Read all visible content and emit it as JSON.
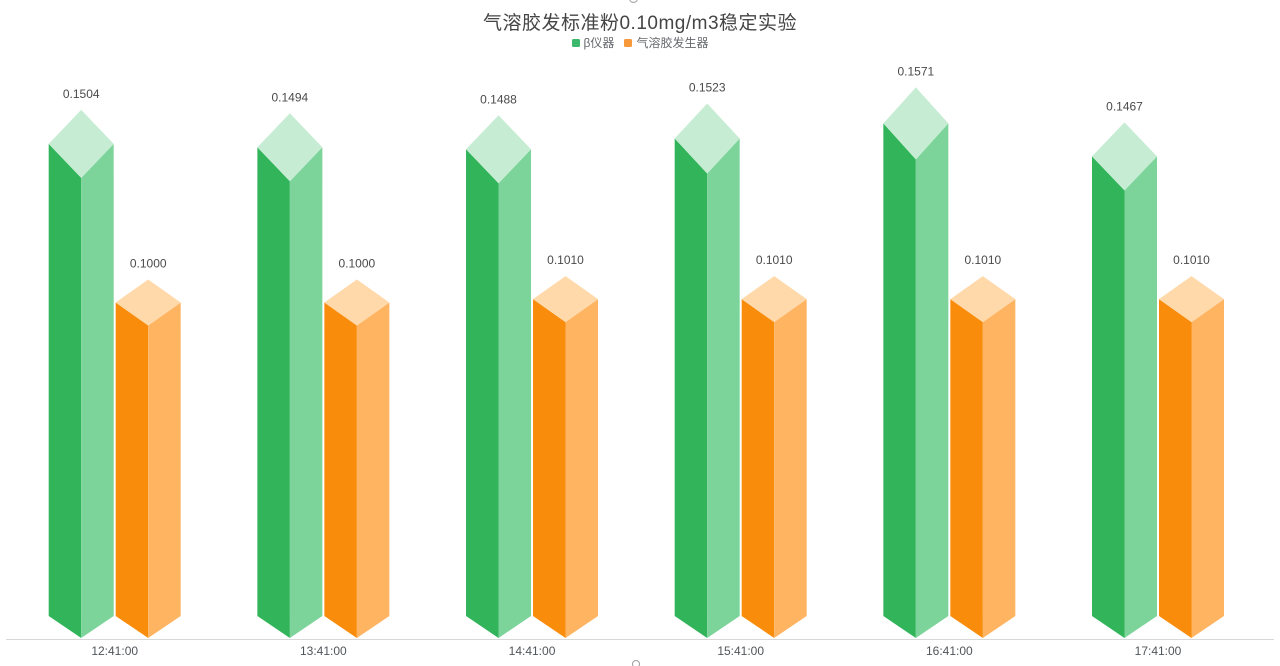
{
  "page": {
    "background": "#FFFFFF"
  },
  "chart_data": {
    "type": "bar",
    "title": "气溶胶发标准粉0.10mg/m3稳定实验",
    "categories": [
      "12:41:00",
      "13:41:00",
      "14:41:00",
      "15:41:00",
      "16:41:00",
      "17:41:00"
    ],
    "series": [
      {
        "name": "β仪器",
        "values": [
          0.1504,
          0.1494,
          0.1488,
          0.1523,
          0.1571,
          0.1467
        ],
        "labels": [
          "0.1504",
          "0.1494",
          "0.1488",
          "0.1523",
          "0.1571",
          "0.1467"
        ],
        "colors": {
          "left": "#32B45A",
          "right": "#7DD49B",
          "top": "#C6EDD3",
          "legend": "#3CB96A"
        }
      },
      {
        "name": "气溶胶发生器",
        "values": [
          0.1,
          0.1,
          0.101,
          0.101,
          0.101,
          0.101
        ],
        "labels": [
          "0.1000",
          "0.1000",
          "0.1010",
          "0.1010",
          "0.1010",
          "0.1010"
        ],
        "colors": {
          "left": "#FA8C0B",
          "right": "#FFB462",
          "top": "#FFD9AA",
          "legend": "#F8993C"
        }
      }
    ],
    "xlabel": "",
    "ylabel": "",
    "y_axis_visible": false,
    "grid": false,
    "legend_position": "top-center",
    "bar_style": "3d-prism",
    "axis_line_color": "#D8D8D8",
    "title_color": "#454545",
    "value_label_color": "#4A4A4A",
    "axis_label_color": "#50555A",
    "legend_text_color": "#66696D"
  },
  "icons": {
    "legend_swatch": "rounded-square",
    "top_edge_artifact": "partial-circle",
    "bottom_edge_artifact": "partial-circle"
  }
}
